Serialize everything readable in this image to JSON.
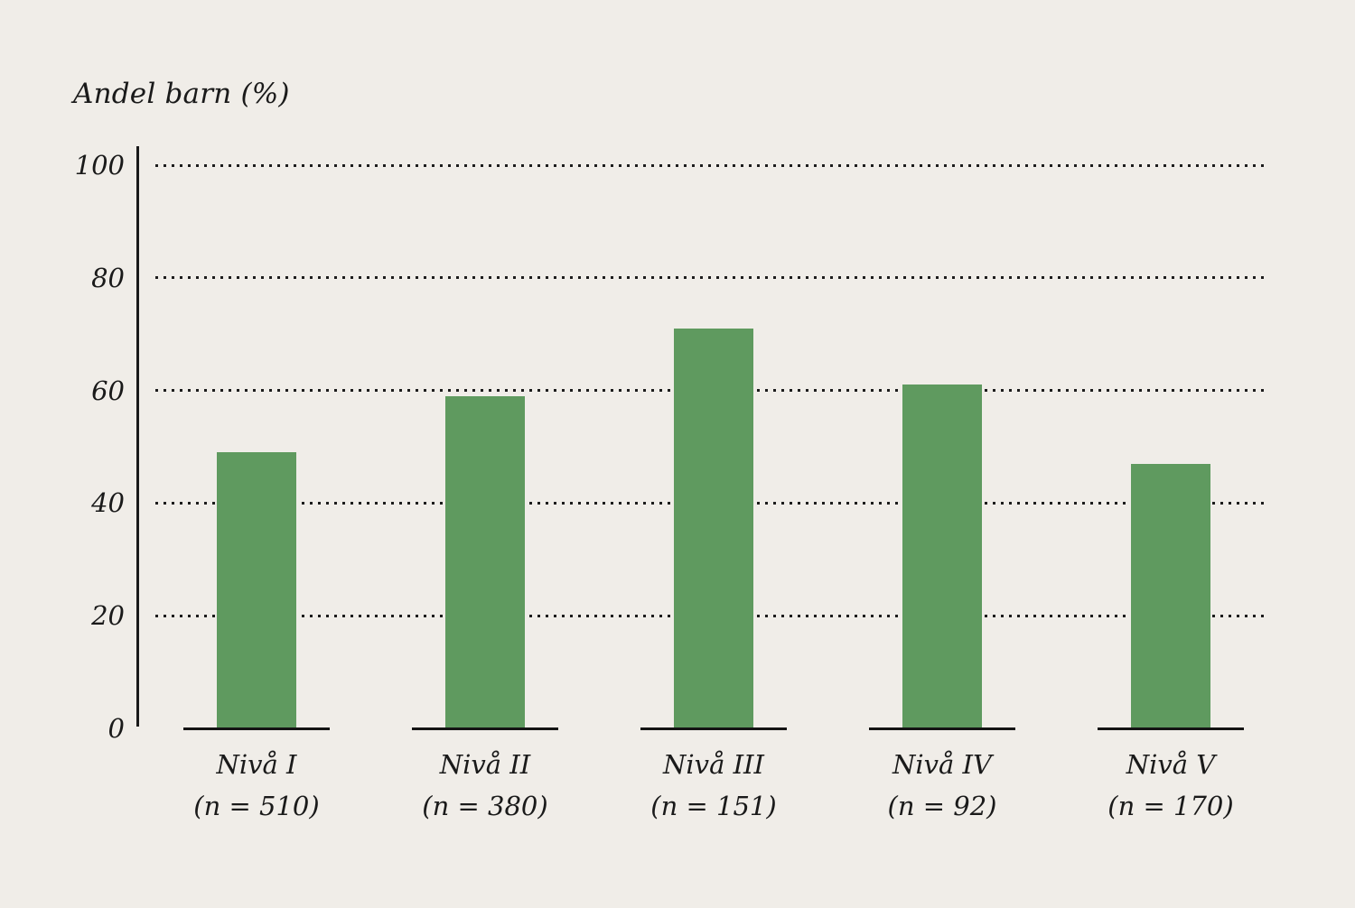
{
  "chart_data": {
    "type": "bar",
    "title": "Andel barn (%)",
    "ylabel": "Andel barn (%)",
    "xlabel": "",
    "categories": [
      "Nivå I",
      "Nivå II",
      "Nivå III",
      "Nivå IV",
      "Nivå V"
    ],
    "sublabels": [
      "(n = 510)",
      "(n = 380)",
      "(n = 151)",
      "(n = 92)",
      "(n = 170)"
    ],
    "n_values": [
      510,
      380,
      151,
      92,
      170
    ],
    "values": [
      49,
      59,
      71,
      61,
      47
    ],
    "yticks": [
      0,
      20,
      40,
      60,
      80,
      100
    ],
    "ylim": [
      0,
      100
    ],
    "grid": "horizontal dotted lines at 20, 40, 60, 80, 100",
    "legend": "none",
    "colors": {
      "bar": "#5f9a5f",
      "background": "#f0ede8",
      "text": "#1a1a1a",
      "axis": "#1a1a1a"
    }
  }
}
